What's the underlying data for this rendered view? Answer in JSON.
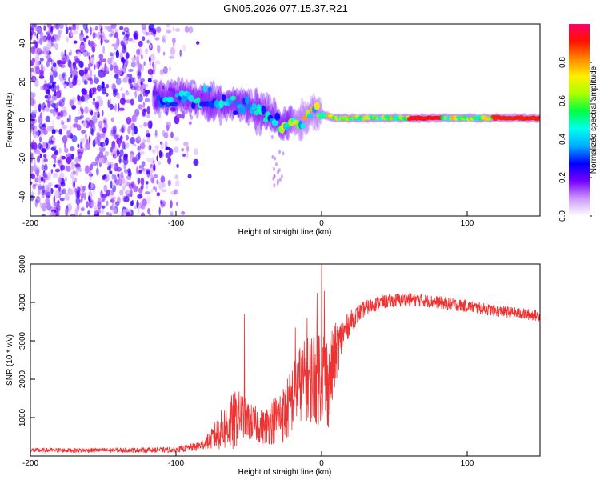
{
  "title": "GN05.2026.077.15.37.R21",
  "chart_data": [
    {
      "type": "heatmap",
      "title": "GN05.2026.077.15.37.R21",
      "xlabel": "Height of straight line (km)",
      "ylabel": "Frequency (Hz)",
      "xlim": [
        -200,
        150
      ],
      "ylim": [
        -50,
        50
      ],
      "xticks": [
        -200,
        -100,
        0,
        100
      ],
      "yticks": [
        -40,
        -20,
        0,
        20,
        40
      ],
      "ridge": {
        "description": "Doppler frequency of the dominant signal vs height",
        "x": [
          -110,
          -100,
          -90,
          -80,
          -70,
          -60,
          -50,
          -45,
          -40,
          -35,
          -30,
          -28,
          -25,
          -20,
          -15,
          -12,
          -10,
          -8,
          -5,
          0,
          5,
          10,
          20,
          40,
          60,
          80,
          100,
          120,
          150
        ],
        "y": [
          11,
          12,
          11,
          10,
          9,
          8,
          7,
          5,
          4,
          2,
          0,
          -3,
          -2,
          -1,
          -2,
          0,
          2,
          4,
          5,
          3,
          2,
          1,
          1,
          1,
          1,
          1,
          1,
          1,
          1
        ]
      },
      "colorbar": {
        "label": "Normalized spectral amplitude",
        "range": [
          0,
          1
        ],
        "ticks": [
          "0.0",
          "0.2",
          "0.4",
          "0.6",
          "0.8"
        ],
        "colors": [
          "#ffffff",
          "#cc99ff",
          "#7700ff",
          "#0000ff",
          "#00aaff",
          "#00ffee",
          "#00ff44",
          "#aaff00",
          "#ffee00",
          "#ff8800",
          "#ff1100",
          "#ff0066"
        ]
      }
    },
    {
      "type": "line",
      "xlabel": "Height of straight line (km)",
      "ylabel": "SNR (10 * v/v)",
      "xlim": [
        -200,
        150
      ],
      "ylim": [
        0,
        5000
      ],
      "xticks": [
        -200,
        -100,
        0,
        100
      ],
      "yticks": [
        1000,
        2000,
        3000,
        4000,
        5000
      ],
      "color": "#ee3333",
      "series": [
        {
          "name": "SNR",
          "envelope_x": [
            -200,
            -150,
            -100,
            -85,
            -80,
            -75,
            -70,
            -60,
            -55,
            -50,
            -40,
            -30,
            -25,
            -20,
            -15,
            -10,
            -5,
            0,
            5,
            10,
            15,
            20,
            25,
            30,
            40,
            50,
            60,
            70,
            80,
            100,
            120,
            150
          ],
          "envelope_mean": [
            150,
            150,
            160,
            250,
            330,
            450,
            650,
            900,
            1100,
            900,
            750,
            1000,
            1100,
            1500,
            1900,
            2000,
            2100,
            2200,
            1900,
            2700,
            3200,
            3500,
            3700,
            3850,
            4000,
            4050,
            4080,
            4050,
            4000,
            3900,
            3780,
            3650
          ],
          "envelope_spread": [
            60,
            60,
            70,
            120,
            160,
            300,
            500,
            800,
            600,
            500,
            450,
            700,
            800,
            900,
            1000,
            1100,
            1300,
            1400,
            1200,
            800,
            400,
            300,
            250,
            200,
            180,
            180,
            180,
            170,
            170,
            160,
            150,
            150
          ],
          "spikes": [
            {
              "x": -53,
              "y": 3700
            },
            {
              "x": -18,
              "y": 3350
            },
            {
              "x": -10,
              "y": 3600
            },
            {
              "x": -3,
              "y": 4250
            },
            {
              "x": 0,
              "y": 5000
            },
            {
              "x": 2,
              "y": 4300
            }
          ]
        }
      ]
    }
  ]
}
